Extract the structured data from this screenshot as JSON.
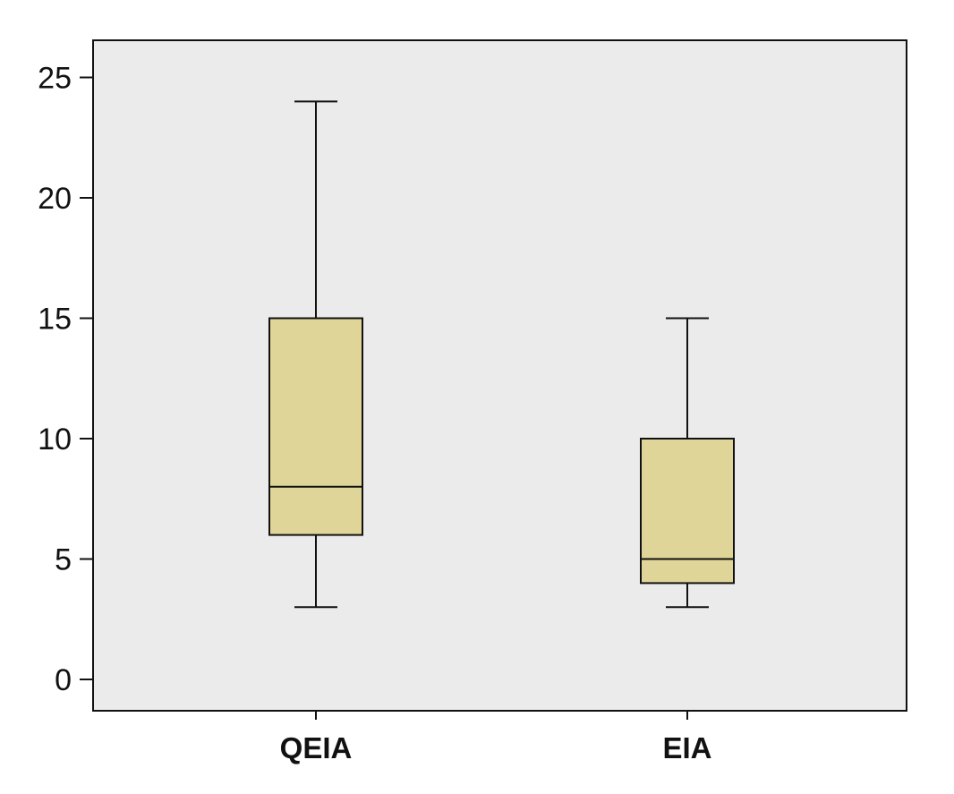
{
  "chart_data": {
    "type": "boxplot",
    "title": "",
    "xlabel": "",
    "ylabel": "",
    "ylim": [
      -1.3,
      26.5
    ],
    "yticks": [
      0,
      5,
      10,
      15,
      20,
      25
    ],
    "ytick_labels": [
      "0",
      "5",
      "10",
      "15",
      "20",
      "25"
    ],
    "categories": [
      "QEIA",
      "EIA"
    ],
    "boxes": [
      {
        "category": "QEIA",
        "min": 3,
        "q1": 6,
        "median": 8,
        "q3": 15,
        "max": 24
      },
      {
        "category": "EIA",
        "min": 3,
        "q1": 4,
        "median": 5,
        "q3": 10,
        "max": 15
      }
    ],
    "grid": false,
    "legend": "none"
  },
  "colors": {
    "plot_background": "#ebebeb",
    "box_fill": "#e0d598",
    "stroke": "#111111"
  }
}
